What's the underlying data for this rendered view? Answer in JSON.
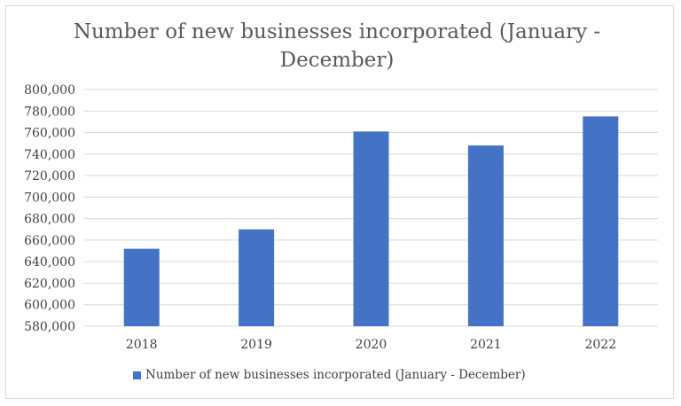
{
  "chart_data": {
    "type": "bar",
    "title": "Number of new businesses incorporated (January - December)",
    "categories": [
      "2018",
      "2019",
      "2020",
      "2021",
      "2022"
    ],
    "series": [
      {
        "name": "Number of new businesses incorporated (January - December)",
        "values": [
          652000,
          670000,
          761000,
          748000,
          775000
        ],
        "color": "#4472C4"
      }
    ],
    "yticks": [
      "580,000",
      "600,000",
      "620,000",
      "640,000",
      "660,000",
      "680,000",
      "700,000",
      "720,000",
      "740,000",
      "760,000",
      "780,000",
      "800,000"
    ],
    "ylim": [
      580000,
      800000
    ],
    "ystep": 20000,
    "grid": true,
    "legend_position": "bottom",
    "xlabel": "",
    "ylabel": ""
  }
}
